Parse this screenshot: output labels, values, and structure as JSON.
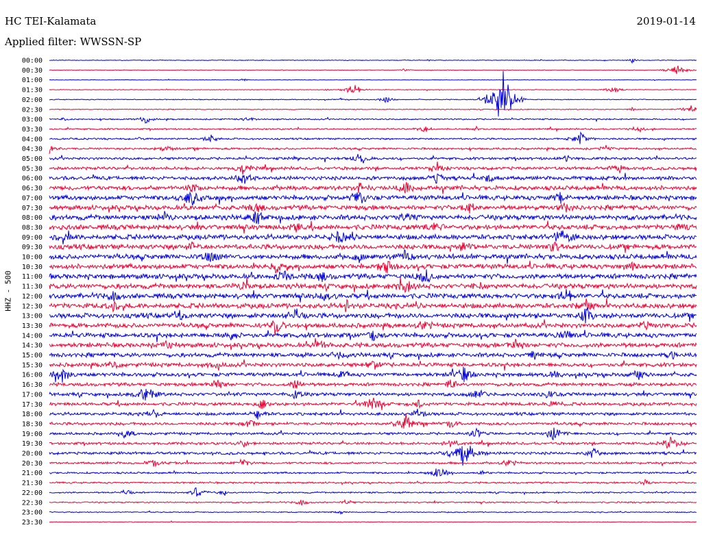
{
  "header": {
    "station": "HC TEI-Kalamata",
    "date": "2019-01-14",
    "filter": "Applied filter: WWSSN-SP"
  },
  "chart_data": {
    "type": "line",
    "ylabel": "HHZ - 500",
    "row_labels": [
      "00:00",
      "00:30",
      "01:00",
      "01:30",
      "02:00",
      "02:30",
      "03:00",
      "03:30",
      "04:00",
      "04:30",
      "05:00",
      "05:30",
      "06:00",
      "06:30",
      "07:00",
      "07:30",
      "08:00",
      "08:30",
      "09:00",
      "09:30",
      "10:00",
      "10:30",
      "11:00",
      "11:30",
      "12:00",
      "12:30",
      "13:00",
      "13:30",
      "14:00",
      "14:30",
      "15:00",
      "15:30",
      "16:00",
      "16:30",
      "17:00",
      "17:30",
      "18:00",
      "18:30",
      "19:00",
      "19:30",
      "20:00",
      "20:30",
      "21:00",
      "21:30",
      "22:00",
      "22:30",
      "23:00",
      "23:30"
    ],
    "colors": [
      "#0000dd",
      "#ee0033"
    ],
    "row_noise": [
      0.4,
      0.3,
      0.3,
      0.4,
      0.5,
      0.5,
      0.8,
      0.9,
      1.0,
      1.2,
      1.5,
      1.8,
      2.2,
      2.6,
      2.8,
      2.8,
      3.0,
      3.0,
      3.0,
      3.0,
      3.0,
      3.0,
      3.0,
      3.0,
      3.0,
      3.0,
      3.0,
      2.8,
      2.8,
      2.7,
      2.5,
      2.4,
      2.3,
      2.0,
      2.0,
      1.9,
      1.8,
      1.7,
      1.5,
      1.5,
      1.6,
      1.3,
      1.1,
      1.0,
      0.9,
      0.8,
      0.6,
      0.4
    ],
    "events": [
      [
        [
          0.9,
          4,
          1.0
        ]
      ],
      [
        [
          0.97,
          9,
          1.0
        ],
        [
          0.55,
          4,
          0.6
        ]
      ],
      [
        [
          0.3,
          4,
          0.8
        ]
      ],
      [
        [
          0.47,
          8,
          1.2
        ],
        [
          0.87,
          7,
          1.0
        ],
        [
          0.43,
          3,
          0.5
        ]
      ],
      [
        [
          0.7,
          12,
          3.0
        ],
        [
          0.52,
          6,
          1.0
        ],
        [
          0.45,
          3,
          0.5
        ]
      ],
      [
        [
          0.99,
          10,
          0.6
        ],
        [
          0.9,
          4,
          0.6
        ]
      ],
      [
        [
          0.15,
          8,
          0.6
        ],
        [
          0.31,
          6,
          0.6
        ],
        [
          0.02,
          4,
          0.5
        ]
      ],
      [
        [
          0.58,
          6,
          1.0
        ],
        [
          0.91,
          6,
          0.8
        ],
        [
          0.66,
          4,
          0.8
        ]
      ],
      [
        [
          0.25,
          6,
          1.0
        ],
        [
          0.82,
          8,
          1.2
        ],
        [
          0.14,
          4,
          0.6
        ]
      ],
      [
        [
          0.0,
          7,
          1.0
        ],
        [
          0.18,
          6,
          1.0
        ],
        [
          0.86,
          5,
          0.8
        ]
      ],
      [
        [
          0.48,
          8,
          1.2
        ],
        [
          0.38,
          4,
          0.8
        ],
        [
          0.8,
          5,
          1.0
        ]
      ],
      [
        [
          0.3,
          7,
          1.2
        ],
        [
          0.6,
          6,
          1.2
        ],
        [
          0.88,
          6,
          1.0
        ]
      ],
      [
        [
          0.3,
          7,
          1.2
        ],
        [
          0.6,
          6,
          1.2
        ],
        [
          0.68,
          6,
          1.0
        ]
      ],
      [
        [
          0.48,
          6,
          1.2
        ],
        [
          0.22,
          6,
          1.2
        ],
        [
          0.55,
          7,
          1.2
        ]
      ],
      [
        [
          0.22,
          8,
          1.5
        ],
        [
          0.48,
          7,
          1.5
        ],
        [
          0.79,
          6,
          1.2
        ]
      ],
      [
        [
          0.32,
          6,
          1.2
        ],
        [
          0.65,
          5,
          1.2
        ],
        [
          0.8,
          6,
          1.0
        ]
      ],
      [
        [
          0.18,
          6,
          1.2
        ],
        [
          0.32,
          7,
          1.2
        ],
        [
          0.55,
          6,
          1.2
        ]
      ],
      [
        [
          0.6,
          7,
          1.2
        ],
        [
          0.38,
          6,
          1.2
        ],
        [
          0.98,
          6,
          1.0
        ]
      ],
      [
        [
          0.02,
          6,
          1.0
        ],
        [
          0.45,
          7,
          1.2
        ],
        [
          0.79,
          8,
          1.5
        ]
      ],
      [
        [
          0.22,
          6,
          1.2
        ],
        [
          0.64,
          6,
          1.0
        ],
        [
          0.78,
          6,
          1.2
        ]
      ],
      [
        [
          0.25,
          7,
          1.2
        ],
        [
          0.48,
          6,
          1.2
        ],
        [
          0.55,
          6,
          1.2
        ]
      ],
      [
        [
          0.52,
          7,
          1.2
        ],
        [
          0.35,
          6,
          1.2
        ],
        [
          0.9,
          6,
          1.0
        ]
      ],
      [
        [
          0.36,
          6,
          1.2
        ],
        [
          0.42,
          6,
          1.2
        ],
        [
          0.58,
          7,
          1.2
        ]
      ],
      [
        [
          0.3,
          6,
          1.2
        ],
        [
          0.55,
          7,
          1.5
        ],
        [
          0.66,
          6,
          1.0
        ]
      ],
      [
        [
          0.1,
          6,
          1.2
        ],
        [
          0.43,
          6,
          1.2
        ],
        [
          0.8,
          8,
          1.2
        ]
      ],
      [
        [
          0.1,
          6,
          1.2
        ],
        [
          0.46,
          6,
          1.2
        ],
        [
          0.83,
          6,
          1.2
        ]
      ],
      [
        [
          0.2,
          6,
          1.2
        ],
        [
          0.38,
          8,
          1.2
        ],
        [
          0.83,
          6,
          1.5
        ]
      ],
      [
        [
          0.35,
          8,
          1.2
        ],
        [
          0.58,
          6,
          1.2
        ],
        [
          0.92,
          6,
          1.0
        ]
      ],
      [
        [
          0.28,
          6,
          1.2
        ],
        [
          0.5,
          7,
          1.2
        ],
        [
          0.8,
          6,
          1.0
        ]
      ],
      [
        [
          0.18,
          6,
          1.2
        ],
        [
          0.42,
          6,
          1.2
        ],
        [
          0.72,
          6,
          1.0
        ]
      ],
      [
        [
          0.45,
          6,
          1.2
        ],
        [
          0.75,
          6,
          1.2
        ],
        [
          0.96,
          6,
          1.0
        ]
      ],
      [
        [
          0.1,
          6,
          1.2
        ],
        [
          0.26,
          6,
          1.2
        ],
        [
          0.5,
          6,
          1.0
        ]
      ],
      [
        [
          0.02,
          8,
          1.2
        ],
        [
          0.45,
          6,
          1.2
        ],
        [
          0.64,
          8,
          1.2
        ],
        [
          0.78,
          6,
          1.0
        ],
        [
          0.91,
          6,
          1.0
        ]
      ],
      [
        [
          0.26,
          6,
          1.2
        ],
        [
          0.38,
          6,
          1.2
        ],
        [
          0.62,
          6,
          1.0
        ]
      ],
      [
        [
          0.15,
          8,
          1.5
        ],
        [
          0.38,
          6,
          1.2
        ],
        [
          0.66,
          7,
          1.2
        ],
        [
          0.77,
          6,
          1.0
        ]
      ],
      [
        [
          0.33,
          6,
          1.2
        ],
        [
          0.5,
          8,
          1.2
        ],
        [
          0.57,
          6,
          1.2
        ],
        [
          0.78,
          6,
          1.0
        ]
      ],
      [
        [
          0.16,
          6,
          1.2
        ],
        [
          0.32,
          6,
          1.2
        ],
        [
          0.57,
          6,
          1.0
        ]
      ],
      [
        [
          0.31,
          6,
          1.2
        ],
        [
          0.55,
          8,
          1.5
        ],
        [
          0.62,
          6,
          1.0
        ]
      ],
      [
        [
          0.12,
          6,
          1.2
        ],
        [
          0.66,
          6,
          1.2
        ],
        [
          0.78,
          8,
          1.2
        ]
      ],
      [
        [
          0.3,
          6,
          1.0
        ],
        [
          0.62,
          6,
          1.2
        ],
        [
          0.96,
          8,
          1.2
        ]
      ],
      [
        [
          0.1,
          4,
          1.0
        ],
        [
          0.64,
          12,
          1.5
        ],
        [
          0.84,
          6,
          1.2
        ]
      ],
      [
        [
          0.16,
          6,
          1.2
        ],
        [
          0.3,
          6,
          1.2
        ],
        [
          0.71,
          6,
          1.0
        ]
      ],
      [
        [
          0.6,
          7,
          1.5
        ],
        [
          0.67,
          4,
          0.8
        ]
      ],
      [
        [
          0.92,
          5,
          0.8
        ]
      ],
      [
        [
          0.12,
          6,
          1.0
        ],
        [
          0.23,
          6,
          1.5
        ],
        [
          0.27,
          5,
          1.0
        ]
      ],
      [
        [
          0.39,
          6,
          0.8
        ],
        [
          0.46,
          5,
          0.8
        ],
        [
          0.9,
          4,
          0.5
        ]
      ],
      [
        [
          0.45,
          5,
          0.6
        ]
      ],
      []
    ]
  }
}
